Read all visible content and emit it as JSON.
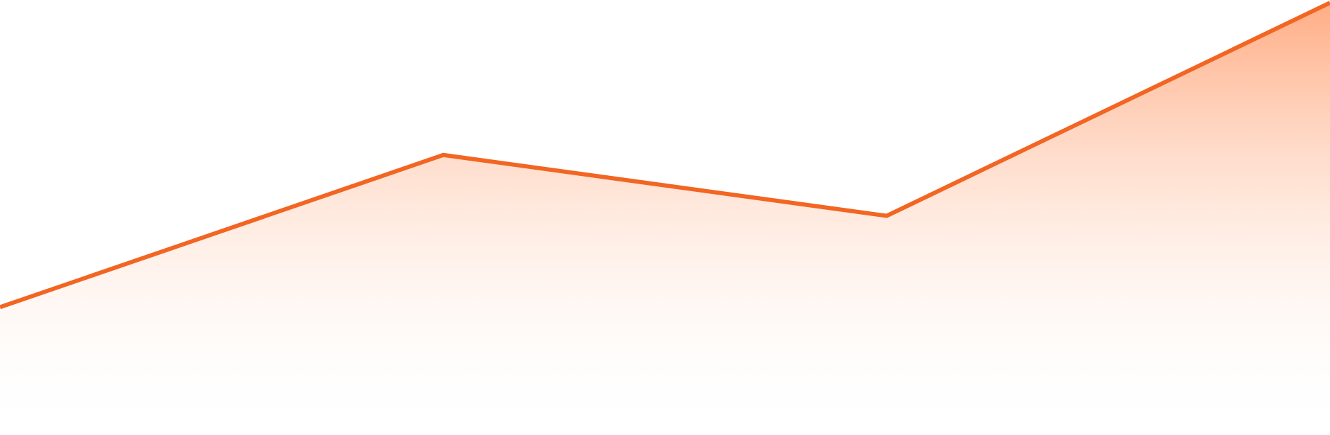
{
  "chart_data": {
    "type": "area",
    "title": "",
    "xlabel": "",
    "ylabel": "",
    "x": [
      0,
      1,
      2,
      3
    ],
    "series": [
      {
        "values": [
          0.0,
          0.5,
          0.3,
          1.0
        ]
      }
    ],
    "xlim": [
      0,
      3
    ],
    "ylim": [
      -0.42,
      1.0
    ],
    "grid": false,
    "legend": "none",
    "colors": {
      "line": "#F26522",
      "fill_top": "#FF9E6E",
      "fill_bottom": "#FFFFFF"
    }
  }
}
